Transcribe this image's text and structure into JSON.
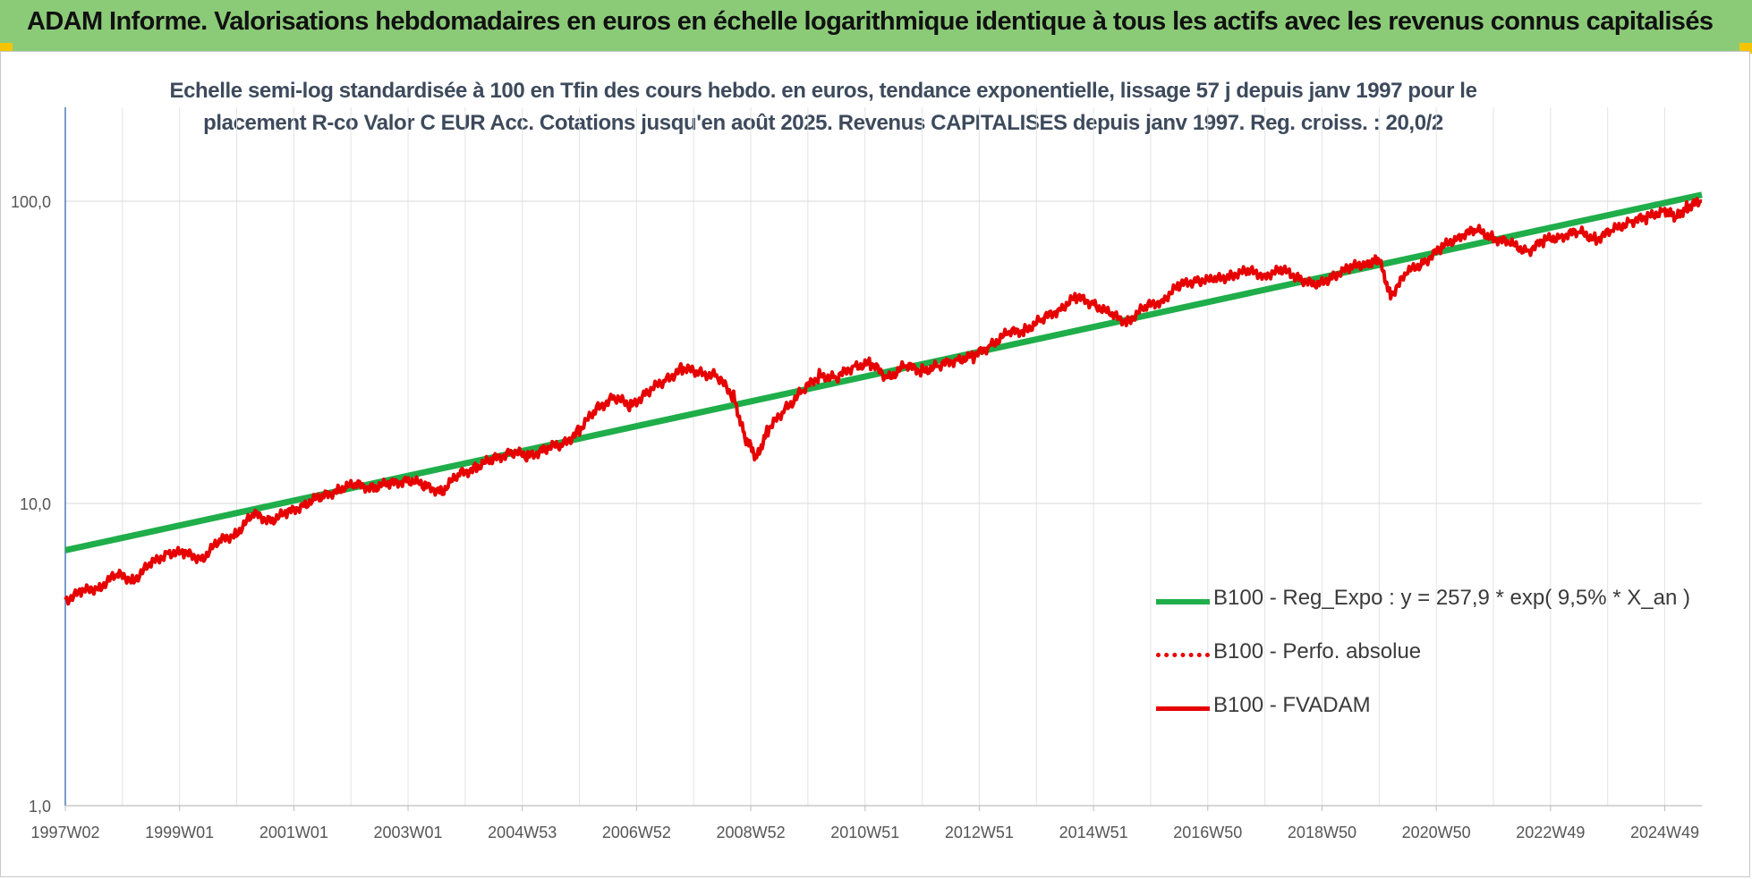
{
  "header": {
    "title": "ADAM Informe. Valorisations hebdomadaires en euros en échelle logarithmique identique à tous les actifs avec les revenus connus capitalisés"
  },
  "colors": {
    "header_bg": "#8bcb78",
    "trend": "#1fae4a",
    "perf": "#e60000",
    "fvadam": "#e60000",
    "accent_corner": "#f5c400"
  },
  "chart_data": {
    "type": "line",
    "title_line1": "Echelle semi-log standardisée à 100 en Tfin des cours hebdo. en euros, tendance exponentielle, lissage 57 j depuis janv 1997 pour le",
    "title_line2": "placement R-co Valor C EUR Acc. Cotations jusqu'en août 2025.  Revenus CAPITALISES depuis janv 1997. Reg. croiss. : 20,0/2",
    "y_scale": "log",
    "ylim": [
      1,
      200
    ],
    "y_ticks": [
      "1,0",
      "10,0",
      "100,0"
    ],
    "xlim": [
      1997.0,
      2025.65
    ],
    "x_ticks": [
      "1997W02",
      "1999W01",
      "2001W01",
      "2003W01",
      "2004W53",
      "2006W52",
      "2008W52",
      "2010W51",
      "2012W51",
      "2014W51",
      "2016W50",
      "2018W50",
      "2020W50",
      "2022W49",
      "2024W49"
    ],
    "x_tick_years": [
      1997.0,
      1999.0,
      2001.0,
      2003.0,
      2005.0,
      2007.0,
      2009.0,
      2011.0,
      2013.0,
      2015.0,
      2017.0,
      2019.0,
      2021.0,
      2023.0,
      2025.0
    ],
    "grid": true,
    "legend_position": "bottom-right",
    "series": [
      {
        "name": "B100 - Reg_Expo : y = 257,9 * exp( 9,5% *  X_an )",
        "style": "solid-thick",
        "x": [
          1997.0,
          2025.65
        ],
        "y": [
          7.0,
          105.0
        ]
      },
      {
        "name": "B100 - Perfo. absolue",
        "style": "dotted",
        "x": [],
        "y": []
      },
      {
        "name": "B100 - FVADAM",
        "style": "solid",
        "x": [
          1997.0,
          1997.3,
          1997.6,
          1997.9,
          1998.2,
          1998.5,
          1998.8,
          1999.1,
          1999.4,
          1999.7,
          2000.0,
          2000.3,
          2000.6,
          2000.9,
          2001.2,
          2001.5,
          2001.8,
          2002.1,
          2002.4,
          2002.7,
          2003.0,
          2003.3,
          2003.6,
          2003.9,
          2004.2,
          2004.5,
          2004.8,
          2005.1,
          2005.4,
          2005.7,
          2006.0,
          2006.3,
          2006.6,
          2006.9,
          2007.2,
          2007.5,
          2007.8,
          2008.1,
          2008.4,
          2008.7,
          2008.9,
          2009.1,
          2009.3,
          2009.6,
          2009.9,
          2010.2,
          2010.5,
          2010.8,
          2011.1,
          2011.4,
          2011.7,
          2012.0,
          2012.3,
          2012.6,
          2012.9,
          2013.2,
          2013.5,
          2013.8,
          2014.1,
          2014.4,
          2014.7,
          2015.0,
          2015.3,
          2015.6,
          2015.9,
          2016.2,
          2016.5,
          2016.8,
          2017.1,
          2017.4,
          2017.7,
          2018.0,
          2018.3,
          2018.6,
          2018.9,
          2019.2,
          2019.5,
          2019.8,
          2020.0,
          2020.2,
          2020.5,
          2020.8,
          2021.1,
          2021.4,
          2021.7,
          2022.0,
          2022.3,
          2022.6,
          2022.9,
          2023.2,
          2023.5,
          2023.8,
          2024.1,
          2024.4,
          2024.7,
          2025.0,
          2025.2,
          2025.4,
          2025.65
        ],
        "y": [
          4.8,
          5.1,
          5.3,
          5.8,
          5.6,
          6.3,
          6.9,
          6.8,
          6.6,
          7.5,
          8.0,
          9.2,
          8.8,
          9.3,
          10.0,
          10.5,
          11.2,
          11.5,
          11.3,
          11.6,
          12.0,
          11.4,
          11.0,
          12.5,
          13.2,
          14.0,
          14.8,
          14.3,
          15.2,
          15.6,
          17.5,
          20.5,
          22.5,
          21.0,
          23.5,
          25.5,
          28.0,
          27.0,
          26.5,
          22.5,
          16.5,
          14.2,
          17.5,
          20.5,
          23.5,
          26.5,
          26.0,
          28.5,
          29.0,
          26.0,
          28.5,
          27.5,
          28.5,
          30.0,
          30.5,
          33.5,
          36.5,
          37.5,
          40.5,
          44.0,
          48.0,
          46.0,
          42.0,
          40.0,
          44.5,
          47.0,
          52.5,
          55.0,
          54.5,
          57.0,
          58.5,
          57.0,
          59.0,
          56.0,
          52.0,
          57.0,
          60.0,
          63.0,
          63.5,
          49.0,
          58.0,
          63.5,
          70.0,
          77.0,
          80.0,
          76.0,
          72.0,
          68.5,
          74.0,
          77.0,
          79.0,
          75.0,
          80.0,
          86.0,
          88.0,
          94.0,
          88.0,
          96.0,
          100.0
        ]
      }
    ]
  }
}
